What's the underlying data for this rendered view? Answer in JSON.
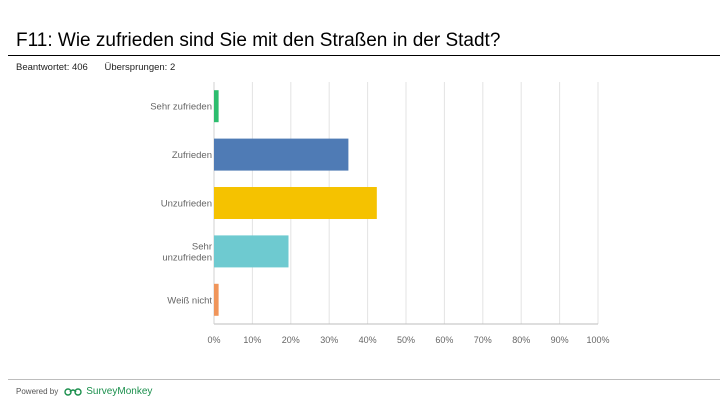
{
  "title": "F11: Wie zufrieden sind Sie mit den Straßen in der Stadt?",
  "answered": "Beantwortet: 406",
  "skipped": "Übersprungen: 2",
  "footer": {
    "powered_by": "Powered by",
    "brand": "SurveyMonkey",
    "brand_icon": "surveymonkey-logo-icon"
  },
  "chart_data": {
    "type": "bar",
    "orientation": "horizontal",
    "categories": [
      [
        "Sehr zufrieden"
      ],
      [
        "Zufrieden"
      ],
      [
        "Unzufrieden"
      ],
      [
        "Sehr",
        "unzufrieden"
      ],
      [
        "Weiß nicht"
      ]
    ],
    "values": [
      1.2,
      35.0,
      42.4,
      19.4,
      1.2
    ],
    "colors": [
      "#2dbd6e",
      "#4f7bb5",
      "#f5c200",
      "#6ecad0",
      "#f0955a"
    ],
    "xlim": [
      0,
      100
    ],
    "xticks": [
      "0%",
      "10%",
      "20%",
      "30%",
      "40%",
      "50%",
      "60%",
      "70%",
      "80%",
      "90%",
      "100%"
    ],
    "grid": true
  }
}
